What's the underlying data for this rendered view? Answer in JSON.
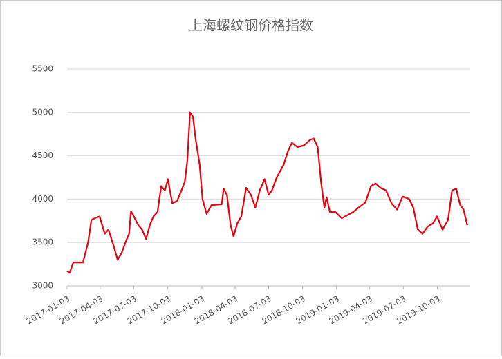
{
  "chart_data": {
    "type": "line",
    "title": "上海螺纹钢价格指数",
    "x": [
      "2017-01-03",
      "2017-01-10",
      "2017-01-20",
      "2017-02-15",
      "2017-03-01",
      "2017-03-10",
      "2017-03-20",
      "2017-04-01",
      "2017-04-15",
      "2017-04-25",
      "2017-05-10",
      "2017-05-20",
      "2017-05-31",
      "2017-06-10",
      "2017-06-20",
      "2017-06-25",
      "2017-07-03",
      "2017-07-15",
      "2017-07-25",
      "2017-08-05",
      "2017-08-15",
      "2017-08-25",
      "2017-09-05",
      "2017-09-15",
      "2017-09-25",
      "2017-10-03",
      "2017-10-15",
      "2017-10-28",
      "2017-11-07",
      "2017-11-18",
      "2017-11-25",
      "2017-12-02",
      "2017-12-10",
      "2017-12-17",
      "2017-12-28",
      "2018-01-05",
      "2018-01-16",
      "2018-01-29",
      "2018-02-26",
      "2018-03-03",
      "2018-03-12",
      "2018-03-22",
      "2018-03-30",
      "2018-04-09",
      "2018-04-20",
      "2018-05-03",
      "2018-05-16",
      "2018-05-28",
      "2018-06-09",
      "2018-06-22",
      "2018-07-03",
      "2018-07-12",
      "2018-07-25",
      "2018-08-13",
      "2018-08-24",
      "2018-09-04",
      "2018-09-19",
      "2018-10-07",
      "2018-10-22",
      "2018-11-02",
      "2018-11-13",
      "2018-11-22",
      "2018-12-01",
      "2018-12-07",
      "2018-12-16",
      "2018-12-31",
      "2019-01-17",
      "2019-02-04",
      "2019-02-17",
      "2019-03-03",
      "2019-03-22",
      "2019-04-06",
      "2019-04-19",
      "2019-05-02",
      "2019-05-17",
      "2019-06-01",
      "2019-06-16",
      "2019-07-01",
      "2019-07-19",
      "2019-07-30",
      "2019-08-11",
      "2019-08-24",
      "2019-09-06",
      "2019-09-21",
      "2019-10-02",
      "2019-10-17",
      "2019-11-01",
      "2019-11-12",
      "2019-11-23",
      "2019-12-04",
      "2019-12-13",
      "2019-12-23"
    ],
    "series": [
      {
        "color": "#e8000b",
        "values": [
          3170,
          3150,
          3270,
          3270,
          3500,
          3760,
          3780,
          3800,
          3600,
          3650,
          3450,
          3300,
          3380,
          3500,
          3600,
          3860,
          3800,
          3700,
          3650,
          3540,
          3700,
          3800,
          3850,
          4150,
          4100,
          4230,
          3950,
          3980,
          4080,
          4200,
          4450,
          5000,
          4950,
          4700,
          4400,
          4000,
          3830,
          3930,
          3940,
          4120,
          4050,
          3700,
          3570,
          3720,
          3800,
          4130,
          4050,
          3900,
          4100,
          4230,
          4050,
          4100,
          4250,
          4400,
          4550,
          4650,
          4600,
          4620,
          4680,
          4700,
          4600,
          4200,
          3900,
          4020,
          3850,
          3850,
          3780,
          3820,
          3850,
          3900,
          3960,
          4150,
          4180,
          4130,
          4100,
          3950,
          3880,
          4030,
          4000,
          3900,
          3650,
          3600,
          3680,
          3720,
          3800,
          3650,
          3760,
          4100,
          4120,
          3930,
          3880,
          3700
        ]
      }
    ],
    "xlim": [
      "2017-01-03",
      "2019-12-31"
    ],
    "xticks": [
      "2017-01-03",
      "2017-04-03",
      "2017-07-03",
      "2017-10-03",
      "2018-01-03",
      "2018-04-03",
      "2018-07-03",
      "2018-10-03",
      "2019-01-03",
      "2019-04-03",
      "2019-07-03",
      "2019-10-03"
    ],
    "ylim": [
      3000,
      5500
    ],
    "yticks": [
      3000,
      3500,
      4000,
      4500,
      5000,
      5500
    ],
    "grid": true
  }
}
